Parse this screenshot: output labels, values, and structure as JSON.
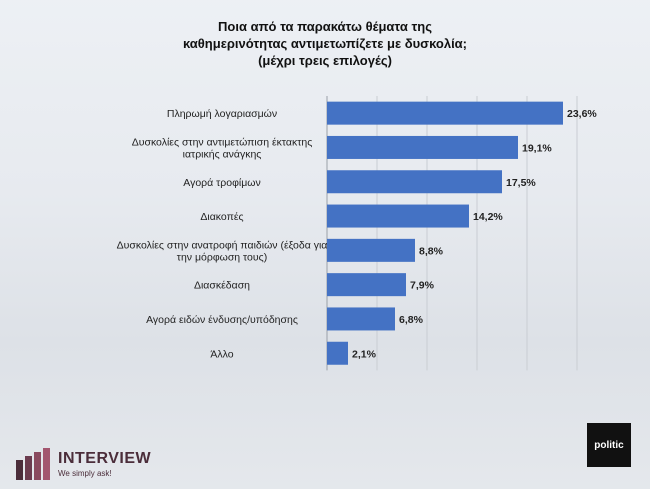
{
  "title_lines": [
    "Ποια από τα παρακάτω θέματα της",
    "καθημερινότητας αντιμετωπίζετε με δυσκολία;",
    "(μέχρι τρεις επιλογές)"
  ],
  "chart_data": {
    "type": "bar",
    "orientation": "horizontal",
    "categories": [
      [
        "Πληρωμή λογαριασμών"
      ],
      [
        "Δυσκολίες στην αντιμετώπιση έκτακτης",
        "ιατρικής ανάγκης"
      ],
      [
        "Αγορά τροφίμων"
      ],
      [
        "Διακοπές"
      ],
      [
        "Δυσκολίες στην ανατροφή παιδιών (έξοδα για",
        "την μόρφωση τους)"
      ],
      [
        "Διασκέδαση"
      ],
      [
        "Αγορά ειδών ένδυσης/υπόδησης"
      ],
      [
        "Άλλο"
      ]
    ],
    "values": [
      23.6,
      19.1,
      17.5,
      14.2,
      8.8,
      7.9,
      6.8,
      2.1
    ],
    "value_labels": [
      "23,6%",
      "19,1%",
      "17,5%",
      "14,2%",
      "8,8%",
      "7,9%",
      "6,8%",
      "2,1%"
    ],
    "bar_color": "#4472c4",
    "xlim": [
      0,
      25
    ],
    "grid": true
  },
  "logos": {
    "left_name": "INTERVIEW",
    "left_tagline": "We simply ask!",
    "right_name": "politic"
  }
}
